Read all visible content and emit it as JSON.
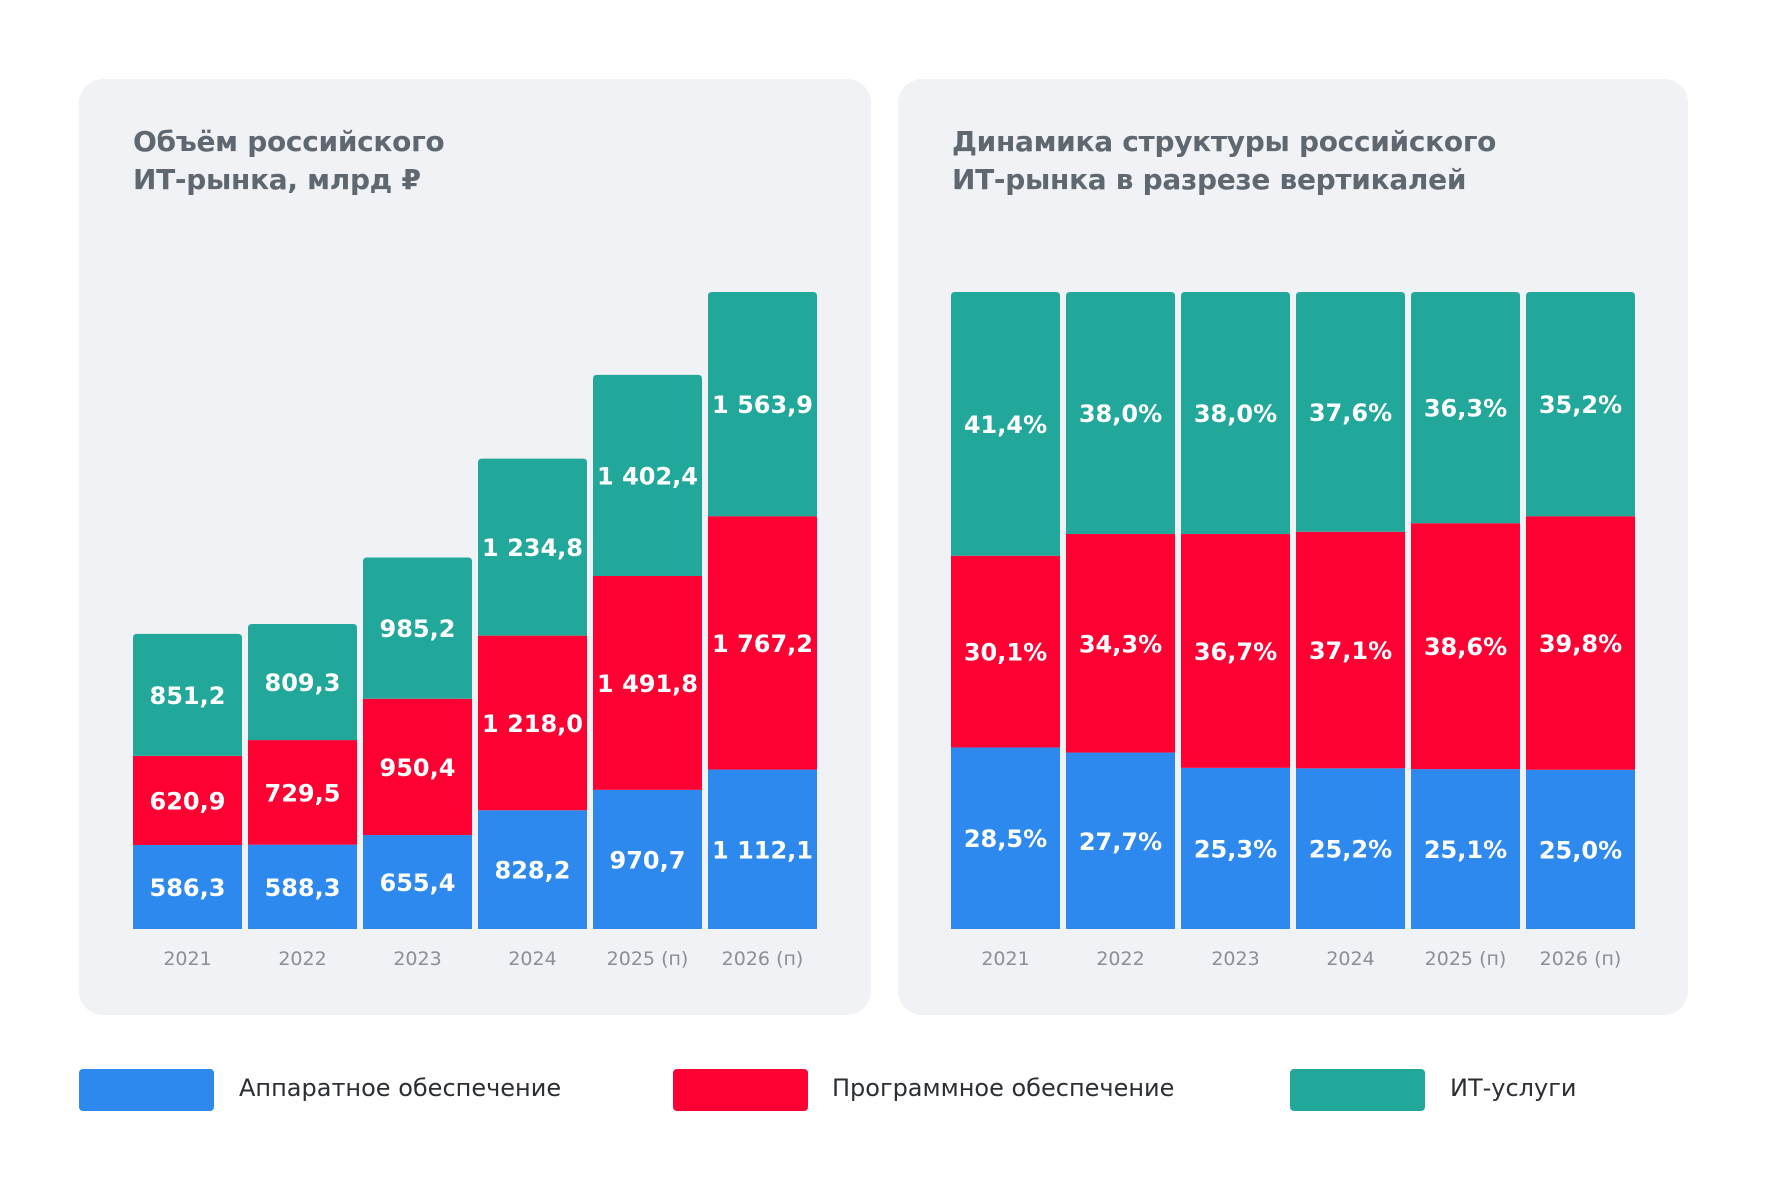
{
  "colors": {
    "hardware": "#2e89ee",
    "software": "#ff0033",
    "services": "#22a89b",
    "panel": "#f0f2f5"
  },
  "legend": [
    {
      "label": "Аппаратное обеспечение",
      "color": "#2e89ee"
    },
    {
      "label": "Программное обеспечение",
      "color": "#ff0033"
    },
    {
      "label": "ИТ-услуги",
      "color": "#22a89b"
    }
  ],
  "chart_data": [
    {
      "type": "bar",
      "stacked": true,
      "title_lines": [
        "Объём российского",
        "ИТ-рынка, млрд ₽"
      ],
      "categories": [
        "2021",
        "2022",
        "2023",
        "2024",
        "2025 (п)",
        "2026 (п)"
      ],
      "series": [
        {
          "name": "Аппаратное обеспечение",
          "values": [
            586.3,
            588.3,
            655.4,
            828.2,
            970.7,
            1112.1
          ],
          "labels": [
            "586,3",
            "588,3",
            "655,4",
            "828,2",
            "970,7",
            "1 112,1"
          ]
        },
        {
          "name": "Программное обеспечение",
          "values": [
            620.9,
            729.5,
            950.4,
            1218.0,
            1491.8,
            1767.2
          ],
          "labels": [
            "620,9",
            "729,5",
            "950,4",
            "1 218,0",
            "1 491,8",
            "1 767,2"
          ]
        },
        {
          "name": "ИТ-услуги",
          "values": [
            851.2,
            809.3,
            985.2,
            1234.8,
            1402.4,
            1563.9
          ],
          "labels": [
            "851,2",
            "809,3",
            "985,2",
            "1 234,8",
            "1 402,4",
            "1 563,9"
          ]
        }
      ],
      "grid": false,
      "legend": "bottom"
    },
    {
      "type": "bar",
      "stacked": true,
      "percent": true,
      "title_lines": [
        "Динамика структуры российского",
        "ИТ-рынка в разрезе вертикалей"
      ],
      "categories": [
        "2021",
        "2022",
        "2023",
        "2024",
        "2025 (п)",
        "2026 (п)"
      ],
      "series": [
        {
          "name": "Аппаратное обеспечение",
          "values": [
            28.5,
            27.7,
            25.3,
            25.2,
            25.1,
            25.0
          ],
          "labels": [
            "28,5%",
            "27,7%",
            "25,3%",
            "25,2%",
            "25,1%",
            "25,0%"
          ]
        },
        {
          "name": "Программное обеспечение",
          "values": [
            30.1,
            34.3,
            36.7,
            37.1,
            38.6,
            39.8
          ],
          "labels": [
            "30,1%",
            "34,3%",
            "36,7%",
            "37,1%",
            "38,6%",
            "39,8%"
          ]
        },
        {
          "name": "ИТ-услуги",
          "values": [
            41.4,
            38.0,
            38.0,
            37.6,
            36.3,
            35.2
          ],
          "labels": [
            "41,4%",
            "38,0%",
            "38,0%",
            "37,6%",
            "36,3%",
            "35,2%"
          ]
        }
      ],
      "ylim": [
        0,
        100
      ],
      "grid": false,
      "legend": "bottom"
    }
  ]
}
